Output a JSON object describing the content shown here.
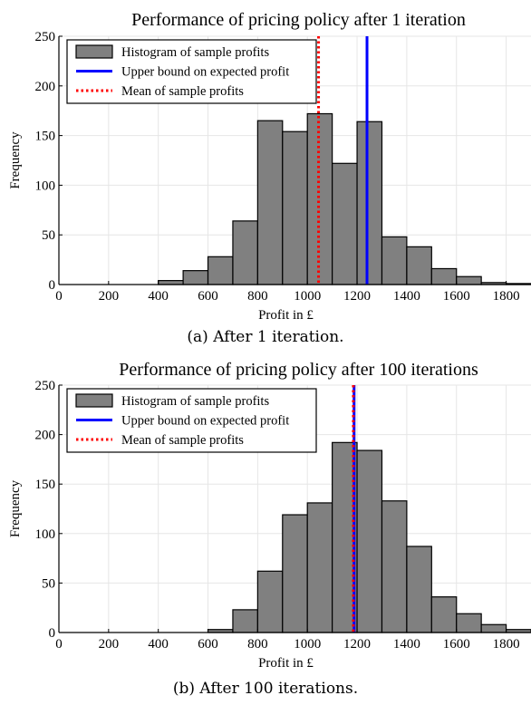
{
  "chart_data": [
    {
      "type": "bar",
      "title": "Performance of pricing policy after 1 iteration",
      "xlabel": "Profit in £",
      "ylabel": "Frequency",
      "xlim": [
        0,
        1900
      ],
      "ylim": [
        0,
        250
      ],
      "xticks": [
        0,
        200,
        400,
        600,
        800,
        1000,
        1200,
        1400,
        1600,
        1800
      ],
      "yticks": [
        0,
        50,
        100,
        150,
        200,
        250
      ],
      "grid": true,
      "legend_position": "top-left",
      "bin_width": 100,
      "bins": [
        400,
        500,
        600,
        700,
        800,
        900,
        1000,
        1100,
        1200,
        1300,
        1400,
        1500,
        1600,
        1700,
        1800
      ],
      "values": [
        4,
        14,
        28,
        64,
        165,
        154,
        172,
        122,
        164,
        48,
        38,
        16,
        8,
        2,
        1
      ],
      "upper_bound": 1240,
      "mean": 1045,
      "legend": {
        "histogram": "Histogram of sample profits",
        "upper_bound": "Upper bound on expected profit",
        "mean": "Mean of sample profits"
      },
      "colors": {
        "bar": "#808080",
        "upper_bound": "#0000ff",
        "mean": "#ff0000"
      },
      "caption": "(a)  After 1 iteration."
    },
    {
      "type": "bar",
      "title": "Performance of pricing policy after 100 iterations",
      "xlabel": "Profit in £",
      "ylabel": "Frequency",
      "xlim": [
        0,
        1900
      ],
      "ylim": [
        0,
        250
      ],
      "xticks": [
        0,
        200,
        400,
        600,
        800,
        1000,
        1200,
        1400,
        1600,
        1800
      ],
      "yticks": [
        0,
        50,
        100,
        150,
        200,
        250
      ],
      "grid": true,
      "legend_position": "top-left",
      "bin_width": 100,
      "bins": [
        600,
        700,
        800,
        900,
        1000,
        1100,
        1200,
        1300,
        1400,
        1500,
        1600,
        1700,
        1800
      ],
      "values": [
        3,
        23,
        62,
        119,
        131,
        192,
        184,
        133,
        87,
        36,
        19,
        8,
        3
      ],
      "upper_bound": 1188,
      "mean": 1185,
      "legend": {
        "histogram": "Histogram of sample profits",
        "upper_bound": "Upper bound on expected profit",
        "mean": "Mean of sample profits"
      },
      "colors": {
        "bar": "#808080",
        "upper_bound": "#0000ff",
        "mean": "#ff0000"
      },
      "caption": "(b)  After 100 iterations."
    }
  ]
}
